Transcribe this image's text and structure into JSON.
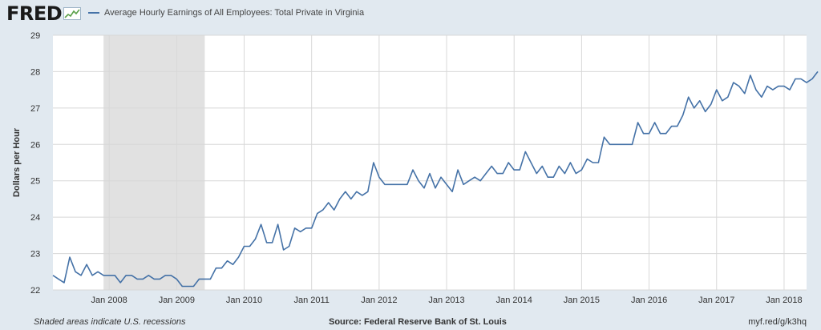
{
  "header": {
    "logo_text": "FRED",
    "legend_label": "Average Hourly Earnings of All Employees: Total Private in Virginia"
  },
  "footer": {
    "note": "Shaded areas indicate U.S. recessions",
    "source": "Source: Federal Reserve Bank of St. Louis",
    "link": "myf.red/g/k3hq"
  },
  "colors": {
    "series": "#4572a7",
    "plot_bg": "#ffffff",
    "page_bg": "#e1e9f0",
    "recession": "#e1e1e1",
    "grid": "#d8d8d8"
  },
  "chart_data": {
    "type": "line",
    "title": "",
    "xlabel": "",
    "ylabel": "Dollars per Hour",
    "ylim": [
      22,
      29
    ],
    "yticks": [
      22,
      23,
      24,
      25,
      26,
      27,
      28,
      29
    ],
    "xlim": [
      "2007-03",
      "2018-05"
    ],
    "xticks": [
      {
        "date": "2008-01",
        "label": "Jan 2008"
      },
      {
        "date": "2009-01",
        "label": "Jan 2009"
      },
      {
        "date": "2010-01",
        "label": "Jan 2010"
      },
      {
        "date": "2011-01",
        "label": "Jan 2011"
      },
      {
        "date": "2012-01",
        "label": "Jan 2012"
      },
      {
        "date": "2013-01",
        "label": "Jan 2013"
      },
      {
        "date": "2014-01",
        "label": "Jan 2014"
      },
      {
        "date": "2015-01",
        "label": "Jan 2015"
      },
      {
        "date": "2016-01",
        "label": "Jan 2016"
      },
      {
        "date": "2017-01",
        "label": "Jan 2017"
      },
      {
        "date": "2018-01",
        "label": "Jan 2018"
      }
    ],
    "grid": true,
    "legend": "top-left",
    "recessions": [
      {
        "start": "2007-12",
        "end": "2009-06"
      }
    ],
    "series": [
      {
        "name": "Average Hourly Earnings of All Employees: Total Private in Virginia",
        "start": "2007-03",
        "frequency": "monthly",
        "values": [
          22.4,
          22.3,
          22.2,
          22.9,
          22.5,
          22.4,
          22.7,
          22.4,
          22.5,
          22.4,
          22.4,
          22.4,
          22.2,
          22.4,
          22.4,
          22.3,
          22.3,
          22.4,
          22.3,
          22.3,
          22.4,
          22.4,
          22.3,
          22.1,
          22.1,
          22.1,
          22.3,
          22.3,
          22.3,
          22.6,
          22.6,
          22.8,
          22.7,
          22.9,
          23.2,
          23.2,
          23.4,
          23.8,
          23.3,
          23.3,
          23.8,
          23.1,
          23.2,
          23.7,
          23.6,
          23.7,
          23.7,
          24.1,
          24.2,
          24.4,
          24.2,
          24.5,
          24.7,
          24.5,
          24.7,
          24.6,
          24.7,
          25.5,
          25.1,
          24.9,
          24.9,
          24.9,
          24.9,
          24.9,
          25.3,
          25.0,
          24.8,
          25.2,
          24.8,
          25.1,
          24.9,
          24.7,
          25.3,
          24.9,
          25.0,
          25.1,
          25.0,
          25.2,
          25.4,
          25.2,
          25.2,
          25.5,
          25.3,
          25.3,
          25.8,
          25.5,
          25.2,
          25.4,
          25.1,
          25.1,
          25.4,
          25.2,
          25.5,
          25.2,
          25.3,
          25.6,
          25.5,
          25.5,
          26.2,
          26.0,
          26.0,
          26.0,
          26.0,
          26.0,
          26.6,
          26.3,
          26.3,
          26.6,
          26.3,
          26.3,
          26.5,
          26.5,
          26.8,
          27.3,
          27.0,
          27.2,
          26.9,
          27.1,
          27.5,
          27.2,
          27.3,
          27.7,
          27.6,
          27.4,
          27.9,
          27.5,
          27.3,
          27.6,
          27.5,
          27.6,
          27.6,
          27.5,
          27.8,
          27.8,
          27.7,
          27.8,
          28.0
        ]
      }
    ]
  }
}
